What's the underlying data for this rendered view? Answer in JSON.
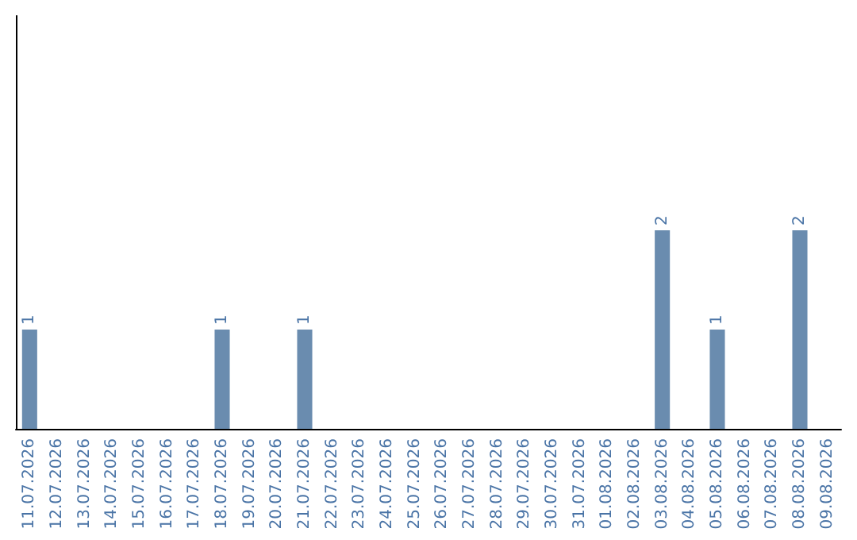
{
  "chart_data": {
    "type": "bar",
    "categories": [
      "11.07.2026",
      "12.07.2026",
      "13.07.2026",
      "14.07.2026",
      "15.07.2026",
      "16.07.2026",
      "17.07.2026",
      "18.07.2026",
      "19.07.2026",
      "20.07.2026",
      "21.07.2026",
      "22.07.2026",
      "23.07.2026",
      "24.07.2026",
      "25.07.2026",
      "26.07.2026",
      "27.07.2026",
      "28.07.2026",
      "29.07.2026",
      "30.07.2026",
      "31.07.2026",
      "01.08.2026",
      "02.08.2026",
      "03.08.2026",
      "04.08.2026",
      "05.08.2026",
      "06.08.2026",
      "07.08.2026",
      "08.08.2026",
      "09.08.2026"
    ],
    "values": [
      1,
      0,
      0,
      0,
      0,
      0,
      0,
      1,
      0,
      0,
      1,
      0,
      0,
      0,
      0,
      0,
      0,
      0,
      0,
      0,
      0,
      0,
      0,
      2,
      0,
      1,
      0,
      0,
      2,
      0
    ],
    "color": "#6a8caf",
    "value_labels": [
      "1",
      null,
      null,
      null,
      null,
      null,
      null,
      "1",
      null,
      null,
      "1",
      null,
      null,
      null,
      null,
      null,
      null,
      null,
      null,
      null,
      null,
      null,
      null,
      "2",
      null,
      "1",
      null,
      null,
      "2",
      null
    ],
    "tick_labels": "x",
    "grid": false
  }
}
